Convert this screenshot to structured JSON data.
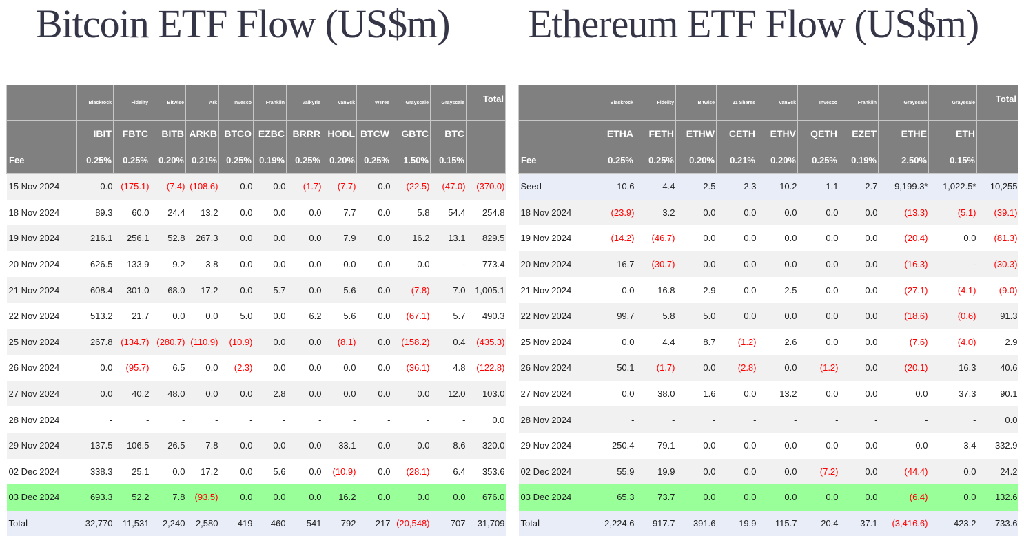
{
  "btc": {
    "title": "Bitcoin ETF Flow (US$m)",
    "issuers": [
      "Blackrock",
      "Fidelity",
      "Bitwise",
      "Ark",
      "Invesco",
      "Franklin",
      "Valkyrie",
      "VanEck",
      "WTree",
      "Grayscale",
      "Grayscale"
    ],
    "total_label": "Total",
    "tickers": [
      "IBIT",
      "FBTC",
      "BITB",
      "ARKB",
      "BTCO",
      "EZBC",
      "BRRR",
      "HODL",
      "BTCW",
      "GBTC",
      "BTC"
    ],
    "fee_label": "Fee",
    "fees": [
      "0.25%",
      "0.25%",
      "0.20%",
      "0.21%",
      "0.25%",
      "0.19%",
      "0.25%",
      "0.20%",
      "0.25%",
      "1.50%",
      "0.15%"
    ],
    "rows": [
      {
        "date": "15 Nov 2024",
        "values": [
          "0.0",
          "(175.1)",
          "(7.4)",
          "(108.6)",
          "0.0",
          "0.0",
          "(1.7)",
          "(7.7)",
          "0.0",
          "(22.5)",
          "(47.0)",
          "(370.0)"
        ]
      },
      {
        "date": "18 Nov 2024",
        "values": [
          "89.3",
          "60.0",
          "24.4",
          "13.2",
          "0.0",
          "0.0",
          "0.0",
          "7.7",
          "0.0",
          "5.8",
          "54.4",
          "254.8"
        ]
      },
      {
        "date": "19 Nov 2024",
        "values": [
          "216.1",
          "256.1",
          "52.8",
          "267.3",
          "0.0",
          "0.0",
          "0.0",
          "7.9",
          "0.0",
          "16.2",
          "13.1",
          "829.5"
        ]
      },
      {
        "date": "20 Nov 2024",
        "values": [
          "626.5",
          "133.9",
          "9.2",
          "3.8",
          "0.0",
          "0.0",
          "0.0",
          "0.0",
          "0.0",
          "0.0",
          "-",
          "773.4"
        ]
      },
      {
        "date": "21 Nov 2024",
        "values": [
          "608.4",
          "301.0",
          "68.0",
          "17.2",
          "0.0",
          "5.7",
          "0.0",
          "5.6",
          "0.0",
          "(7.8)",
          "7.0",
          "1,005.1"
        ]
      },
      {
        "date": "22 Nov 2024",
        "values": [
          "513.2",
          "21.7",
          "0.0",
          "0.0",
          "5.0",
          "0.0",
          "6.2",
          "5.6",
          "0.0",
          "(67.1)",
          "5.7",
          "490.3"
        ]
      },
      {
        "date": "25 Nov 2024",
        "values": [
          "267.8",
          "(134.7)",
          "(280.7)",
          "(110.9)",
          "(10.9)",
          "0.0",
          "0.0",
          "(8.1)",
          "0.0",
          "(158.2)",
          "0.4",
          "(435.3)"
        ]
      },
      {
        "date": "26 Nov 2024",
        "values": [
          "0.0",
          "(95.7)",
          "6.5",
          "0.0",
          "(2.3)",
          "0.0",
          "0.0",
          "0.0",
          "0.0",
          "(36.1)",
          "4.8",
          "(122.8)"
        ]
      },
      {
        "date": "27 Nov 2024",
        "values": [
          "0.0",
          "40.2",
          "48.0",
          "0.0",
          "0.0",
          "2.8",
          "0.0",
          "0.0",
          "0.0",
          "0.0",
          "12.0",
          "103.0"
        ]
      },
      {
        "date": "28 Nov 2024",
        "values": [
          "-",
          "-",
          "-",
          "-",
          "-",
          "-",
          "-",
          "-",
          "-",
          "-",
          "-",
          "0.0"
        ]
      },
      {
        "date": "29 Nov 2024",
        "values": [
          "137.5",
          "106.5",
          "26.5",
          "7.8",
          "0.0",
          "0.0",
          "0.0",
          "33.1",
          "0.0",
          "0.0",
          "8.6",
          "320.0"
        ]
      },
      {
        "date": "02 Dec 2024",
        "values": [
          "338.3",
          "25.1",
          "0.0",
          "17.2",
          "0.0",
          "5.6",
          "0.0",
          "(10.9)",
          "0.0",
          "(28.1)",
          "6.4",
          "353.6"
        ]
      },
      {
        "date": "03 Dec 2024",
        "values": [
          "693.3",
          "52.2",
          "7.8",
          "(93.5)",
          "0.0",
          "0.0",
          "0.0",
          "16.2",
          "0.0",
          "0.0",
          "0.0",
          "676.0"
        ],
        "highlight": true
      },
      {
        "date": "Total",
        "values": [
          "32,770",
          "11,531",
          "2,240",
          "2,580",
          "419",
          "460",
          "541",
          "792",
          "217",
          "(20,548)",
          "707",
          "31,709"
        ],
        "total": true
      }
    ]
  },
  "eth": {
    "title": "Ethereum ETF Flow (US$m)",
    "issuers": [
      "Blackrock",
      "Fidelity",
      "Bitwise",
      "21 Shares",
      "VanEck",
      "Invesco",
      "Franklin",
      "Grayscale",
      "Grayscale"
    ],
    "total_label": "Total",
    "tickers": [
      "ETHA",
      "FETH",
      "ETHW",
      "CETH",
      "ETHV",
      "QETH",
      "EZET",
      "ETHE",
      "ETH"
    ],
    "fee_label": "Fee",
    "fees": [
      "0.25%",
      "0.25%",
      "0.20%",
      "0.21%",
      "0.20%",
      "0.25%",
      "0.19%",
      "2.50%",
      "0.15%"
    ],
    "rows": [
      {
        "date": "Seed",
        "values": [
          "10.6",
          "4.4",
          "2.5",
          "2.3",
          "10.2",
          "1.1",
          "2.7",
          "9,199.3*",
          "1,022.5*",
          "10,255"
        ],
        "seed": true
      },
      {
        "date": "18 Nov 2024",
        "values": [
          "(23.9)",
          "3.2",
          "0.0",
          "0.0",
          "0.0",
          "0.0",
          "0.0",
          "(13.3)",
          "(5.1)",
          "(39.1)"
        ]
      },
      {
        "date": "19 Nov 2024",
        "values": [
          "(14.2)",
          "(46.7)",
          "0.0",
          "0.0",
          "0.0",
          "0.0",
          "0.0",
          "(20.4)",
          "0.0",
          "(81.3)"
        ]
      },
      {
        "date": "20 Nov 2024",
        "values": [
          "16.7",
          "(30.7)",
          "0.0",
          "0.0",
          "0.0",
          "0.0",
          "0.0",
          "(16.3)",
          "-",
          "(30.3)"
        ]
      },
      {
        "date": "21 Nov 2024",
        "values": [
          "0.0",
          "16.8",
          "2.9",
          "0.0",
          "2.5",
          "0.0",
          "0.0",
          "(27.1)",
          "(4.1)",
          "(9.0)"
        ]
      },
      {
        "date": "22 Nov 2024",
        "values": [
          "99.7",
          "5.8",
          "5.0",
          "0.0",
          "0.0",
          "0.0",
          "0.0",
          "(18.6)",
          "(0.6)",
          "91.3"
        ]
      },
      {
        "date": "25 Nov 2024",
        "values": [
          "0.0",
          "4.4",
          "8.7",
          "(1.2)",
          "2.6",
          "0.0",
          "0.0",
          "(7.6)",
          "(4.0)",
          "2.9"
        ]
      },
      {
        "date": "26 Nov 2024",
        "values": [
          "50.1",
          "(1.7)",
          "0.0",
          "(2.8)",
          "0.0",
          "(1.2)",
          "0.0",
          "(20.1)",
          "16.3",
          "40.6"
        ]
      },
      {
        "date": "27 Nov 2024",
        "values": [
          "0.0",
          "38.0",
          "1.6",
          "0.0",
          "13.2",
          "0.0",
          "0.0",
          "0.0",
          "37.3",
          "90.1"
        ]
      },
      {
        "date": "28 Nov 2024",
        "values": [
          "-",
          "-",
          "-",
          "-",
          "-",
          "-",
          "-",
          "-",
          "-",
          "0.0"
        ]
      },
      {
        "date": "29 Nov 2024",
        "values": [
          "250.4",
          "79.1",
          "0.0",
          "0.0",
          "0.0",
          "0.0",
          "0.0",
          "0.0",
          "3.4",
          "332.9"
        ]
      },
      {
        "date": "02 Dec 2024",
        "values": [
          "55.9",
          "19.9",
          "0.0",
          "0.0",
          "0.0",
          "(7.2)",
          "0.0",
          "(44.4)",
          "0.0",
          "24.2"
        ]
      },
      {
        "date": "03 Dec 2024",
        "values": [
          "65.3",
          "73.7",
          "0.0",
          "0.0",
          "0.0",
          "0.0",
          "0.0",
          "(6.4)",
          "0.0",
          "132.6"
        ],
        "highlight": true
      },
      {
        "date": "Total",
        "values": [
          "2,224.6",
          "917.7",
          "391.6",
          "19.9",
          "115.7",
          "20.4",
          "37.1",
          "(3,416.6)",
          "423.2",
          "733.6"
        ],
        "total": true
      }
    ]
  }
}
